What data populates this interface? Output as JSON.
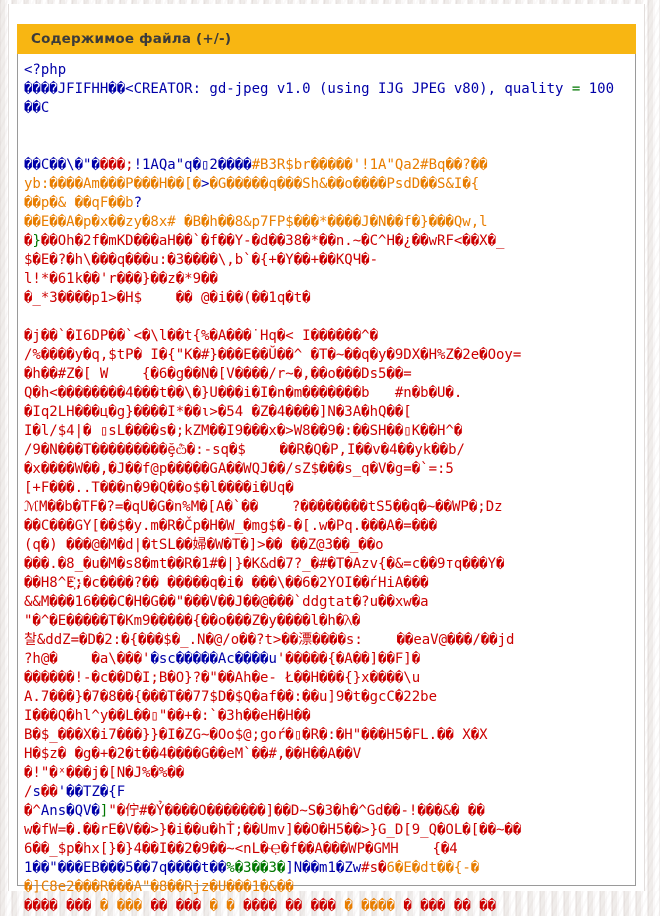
{
  "header": {
    "title": "Содержимое файла (+/-)"
  },
  "colors": {
    "b": "#0000a8",
    "r": "#cc0000",
    "o": "#e87d00",
    "g": "#007700",
    "header_bg": "#f8b612",
    "header_text": "#3b3b3b",
    "border": "#9a9a9a"
  },
  "file_dump": {
    "lines": [
      [
        [
          "b",
          "<?php"
        ]
      ],
      [
        [
          "b",
          "����JFIFHH��<CREATOR: gd-jpeg v1.0 (using IJG JPEG v80), quality "
        ],
        [
          "g",
          "="
        ],
        [
          "b",
          " 100"
        ]
      ],
      [
        [
          "b",
          "��C"
        ]
      ],
      [],
      [],
      [
        [
          "b",
          "��C��\\�\"�"
        ],
        [
          "r",
          "���;"
        ],
        [
          "b",
          "!1AQa\"q�▯2����"
        ],
        [
          "o",
          "#B3R$br�����'!1A\"Qa2#Bq��?��"
        ]
      ],
      [
        [
          "o",
          "yb:����Am���P���H��[�"
        ],
        [
          "b",
          ">"
        ],
        [
          "o",
          "�G�����q���Sh&��o����PsdD��S&I�{"
        ]
      ],
      [
        [
          "o",
          "��p�& ��qF��b"
        ],
        [
          "b",
          "?"
        ]
      ],
      [
        [
          "o",
          "��E��A�p�x��zy�8x# �B�h��8&p7FP$���*����J�N��f�}���Qw,l"
        ]
      ],
      [
        [
          "r",
          "�"
        ],
        [
          "g",
          "}"
        ],
        [
          "r",
          "��Oh�2f�mKD���aH��`�f��Y-�d��38�*��n.~�C^H�¿��wRF<��X�_"
        ]
      ],
      [
        [
          "r",
          "$�E�?�h\\���q���u:�3����\\‚b`�{+�Y��+��KQЧ�-"
        ]
      ],
      [
        [
          "r",
          "l!*�61k��'r���}��z�*9��"
        ]
      ],
      [
        [
          "r",
          "�_*3����p1>�H$    �� @�i��(��1q�t�"
        ]
      ],
      [],
      [
        [
          "r",
          "�j��`�I6DP��`<�\\l��t{%�A���˙Hq�< I������^�"
        ]
      ],
      [
        [
          "r",
          "/%����y�q‚$tP� I�{\"K�#}���E��Ŭ��^ �T�~��q�y�9DX�H%Z�2e�Ooy="
        ]
      ],
      [
        [
          "r",
          "�h��#Z�[ W    {�6�g��N�[V����/r~�,��o���Ds5��="
        ]
      ],
      [
        [
          "r",
          "Q�h<��������4���t��\\�}U���i�I�n�m�������b   #n�b�U�."
        ]
      ],
      [
        [
          "r",
          "�Iq2LH���ц�g}����I*��ι>�54 �Z�4����]N�3A�hQ��["
        ]
      ],
      [
        [
          "r",
          "I�l/$4|� ▯sL����s�;kZM��I9���x�>W8��9�:��SH��▯K��H^�"
        ]
      ],
      [
        [
          "r",
          "/9�N���T���������ḝѽ�:-sq�$    ��R�Q�P,I��v�4��yk��b/"
        ]
      ],
      [
        [
          "r",
          "�x����W��,�J��f@p�����GA��WQJ��/sZ$���s_q�V�g=�`=:5"
        ]
      ],
      [
        [
          "r",
          "[+F���..T���n�9�Q��o$�l����i�Uq�"
        ]
      ],
      [
        [
          "r",
          "ℳM��b�TF�?=�qU�G�n%M�[A�`��    ?��������tS5��q�~��WP�;Dz"
        ]
      ],
      [
        [
          "r",
          "��C���GY[��$�y.m�R�Čp�H�W_�mg$�-�[.w�Pq.���A�=���"
        ]
      ],
      [
        [
          "r",
          "(q�) ���@�M�d|�tSL��婦�W�T�]>�� ��Z@3��_��o"
        ]
      ],
      [
        [
          "r",
          "���.�8_�u�M�s8�mt��R�1#�|}�K&d�7?_�#�T�Azv{�&=c��9тq���Y�"
        ]
      ],
      [
        [
          "r",
          "��H8^E҉;�c����?�� �����q�i� ���\\��6�2YOI��ѓHiA���"
        ]
      ],
      [
        [
          "r",
          "&&M���16���C�H�G��\"���V��J��@���`ddgtat�?u��xw�a"
        ]
      ],
      [
        [
          "r",
          "\"�^�E�����T�Km9�����{��o���Z�y����l�h�ꟛ�"
        ]
      ],
      [
        [
          "r",
          "찰&ddZ=�D�2:�{���$�_.N�@/o��?t>��漂����s:    ��eaV@���/��jd"
        ]
      ],
      [
        [
          "r",
          "?h@�    �a\\���'"
        ],
        [
          "b",
          "�sc�����Ac����u"
        ],
        [
          "r",
          "'�����{�A��]��F]�"
        ]
      ],
      [
        [
          "r",
          "������!-�c��D�I;B�O}?�\"��Ah�e- Ł��H���{}x����\\u"
        ]
      ],
      [
        [
          "r",
          "A.7���}�7�8��{���T��77$D�$Q�af��:��u]9�t�gcC�22be"
        ]
      ],
      [
        [
          "r",
          "I���Q�hl^y��L��▯\"��+�:`�3h��eH�H��"
        ]
      ],
      [
        [
          "r",
          "B�$_���X�i7���}}�I�ZG~�Oo$@;goŕ�▯�R�:�H\"���H5�FL.�� X�X"
        ]
      ],
      [
        [
          "r",
          "H�$z� �g�+�2�t��4����G��eM`��#‚��H��A��V"
        ]
      ],
      [
        [
          "r",
          "�!\"�ˣ���j�[N�J%�%��"
        ]
      ],
      [
        [
          "r",
          "/"
        ],
        [
          "b",
          "s"
        ],
        [
          "r",
          "��"
        ],
        [
          "b",
          "'��TZ�{F"
        ]
      ],
      [
        [
          "r",
          "�^"
        ],
        [
          "b",
          "Ans�QV�"
        ],
        [
          "g",
          "]"
        ],
        [
          "r",
          "\"�佇#�Ỷ����O�������]��D~S�3�h�^Gd��-!���&� ��"
        ]
      ],
      [
        [
          "r",
          "w�fW=�.��rE�V��>}�i��u�hṪ;��Umv]��O�H5��>}G_D[9_Q�OL�[��~��"
        ]
      ],
      [
        [
          "r",
          "6��_$p�hx[}�}4��I��2�9��~<nL�Ҿ�f��A���WP�GMH    {�4"
        ]
      ],
      [
        [
          "b",
          "1��\"���EB���5��7q����t��"
        ],
        [
          "g",
          "%�3��3�"
        ],
        [
          "b",
          "]N��m1�Zw"
        ],
        [
          "r",
          "#s�"
        ],
        [
          "o",
          "6�E�dt��{-�"
        ]
      ],
      [
        [
          "o",
          "�]C8e2���R���A\"�8��Rjz�U���1�&��"
        ]
      ],
      [
        [
          "r",
          "���� ��� "
        ],
        [
          "o",
          "� ��� "
        ],
        [
          "r",
          "�� ��� "
        ],
        [
          "o",
          "� � "
        ],
        [
          "r",
          "���� �� ��� "
        ],
        [
          "o",
          "� ���� "
        ],
        [
          "r",
          "� ��� �� ��"
        ]
      ]
    ]
  }
}
